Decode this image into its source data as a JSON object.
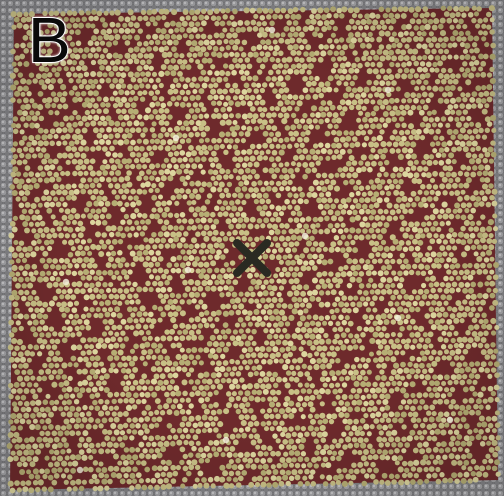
{
  "figure": {
    "panel_label": "B",
    "center_marker_icon": "x-cross-icon",
    "colors": {
      "background_particles": "#8e8e90",
      "lattice_particles": "#c7bf83",
      "interstitial_red": "#7a2e30",
      "marker": "#2a2a22"
    }
  }
}
